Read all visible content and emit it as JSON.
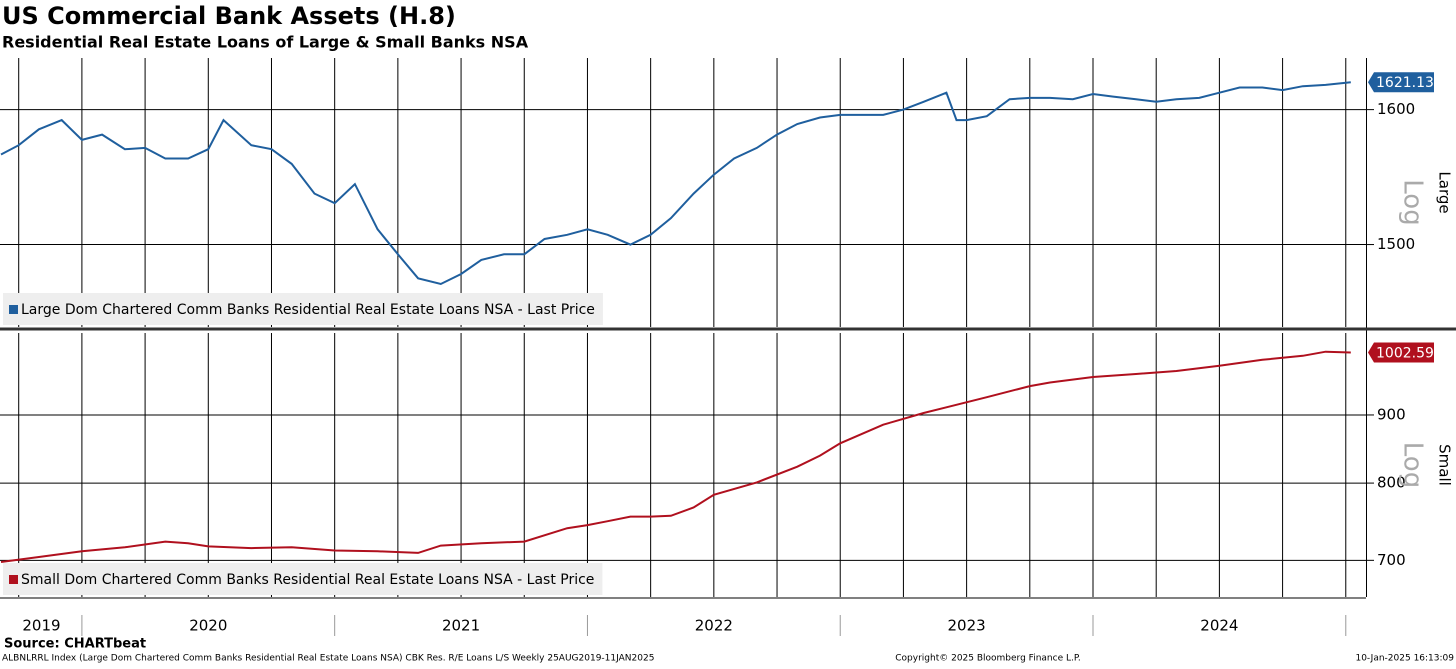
{
  "header": {
    "title": "US Commercial Bank Assets (H.8)",
    "subtitle": "Residential Real Estate Loans of Large & Small Banks NSA"
  },
  "footer": {
    "source": "Source: CHARTbeat",
    "description": "ALBNLRRL Index (Large Dom Chartered Comm Banks Residential Real Estate Loans NSA) CBK Res. R/E Loans L/S  Weekly 25AUG2019-11JAN2025",
    "copyright": "Copyright© 2025 Bloomberg Finance L.P.",
    "timestamp": "10-Jan-2025 16:13:09"
  },
  "chart_data": [
    {
      "type": "line",
      "axis_label": "Large",
      "scale_note": "Log",
      "log_scale": true,
      "grid": true,
      "xlim": [
        2019.676,
        2025.08
      ],
      "xticks": [
        2019.75,
        2020,
        2020.25,
        2020.5,
        2020.75,
        2021,
        2021.25,
        2021.5,
        2021.75,
        2022,
        2022.25,
        2022.5,
        2022.75,
        2023,
        2023.25,
        2023.5,
        2023.75,
        2024,
        2024.25,
        2024.5,
        2024.75,
        2025
      ],
      "ylim": [
        1442,
        1640
      ],
      "yticks": [
        1500,
        1600
      ],
      "x": [
        2019.68,
        2019.75,
        2019.83,
        2019.92,
        2020.0,
        2020.08,
        2020.17,
        2020.25,
        2020.33,
        2020.42,
        2020.5,
        2020.56,
        2020.67,
        2020.75,
        2020.83,
        2020.92,
        2021.0,
        2021.08,
        2021.17,
        2021.25,
        2021.33,
        2021.42,
        2021.5,
        2021.58,
        2021.67,
        2021.75,
        2021.83,
        2021.92,
        2022.0,
        2022.08,
        2022.17,
        2022.25,
        2022.33,
        2022.42,
        2022.5,
        2022.58,
        2022.67,
        2022.75,
        2022.83,
        2022.92,
        2023.0,
        2023.08,
        2023.17,
        2023.25,
        2023.33,
        2023.42,
        2023.46,
        2023.5,
        2023.58,
        2023.67,
        2023.75,
        2023.83,
        2023.92,
        2024.0,
        2024.08,
        2024.17,
        2024.25,
        2024.33,
        2024.42,
        2024.5,
        2024.58,
        2024.67,
        2024.75,
        2024.83,
        2024.92,
        2025.02
      ],
      "series": [
        {
          "name": "Large Dom Chartered Comm Banks Residential Real Estate Loans NSA - Last Price",
          "color": "#1f5f9e",
          "values": [
            1566,
            1573,
            1585,
            1592,
            1577,
            1581,
            1570,
            1571,
            1563,
            1563,
            1570,
            1592,
            1573,
            1570,
            1559,
            1537,
            1530,
            1544,
            1511,
            1493,
            1476,
            1472,
            1479,
            1489,
            1493,
            1493,
            1504,
            1507,
            1511,
            1507,
            1500,
            1507,
            1519,
            1537,
            1551,
            1563,
            1571,
            1581,
            1589,
            1594,
            1596,
            1596,
            1596,
            1600,
            1606,
            1613,
            1592,
            1592,
            1595,
            1608,
            1609,
            1609,
            1608,
            1612,
            1610,
            1608,
            1606,
            1608,
            1609,
            1613,
            1617,
            1617,
            1615,
            1618,
            1619,
            1621.13
          ]
        }
      ]
    },
    {
      "type": "line",
      "axis_label": "Small",
      "scale_note": "Log",
      "log_scale": true,
      "grid": true,
      "xlim": [
        2019.676,
        2025.08
      ],
      "xticks": [
        2019.75,
        2020,
        2020.25,
        2020.5,
        2020.75,
        2021,
        2021.25,
        2021.5,
        2021.75,
        2022,
        2022.25,
        2022.5,
        2022.75,
        2023,
        2023.25,
        2023.5,
        2023.75,
        2024,
        2024.25,
        2024.5,
        2024.75,
        2025
      ],
      "year_labels": [
        {
          "value": 2019.84,
          "label": "2019"
        },
        {
          "value": 2020.5,
          "label": "2020"
        },
        {
          "value": 2021.5,
          "label": "2021"
        },
        {
          "value": 2022.5,
          "label": "2022"
        },
        {
          "value": 2023.5,
          "label": "2023"
        },
        {
          "value": 2024.5,
          "label": "2024"
        }
      ],
      "ylim": [
        657,
        1037
      ],
      "yticks": [
        700,
        800,
        900
      ],
      "x": [
        2019.68,
        2019.83,
        2020.0,
        2020.17,
        2020.33,
        2020.42,
        2020.5,
        2020.67,
        2020.83,
        2021.0,
        2021.17,
        2021.33,
        2021.42,
        2021.58,
        2021.75,
        2021.92,
        2022.0,
        2022.08,
        2022.17,
        2022.25,
        2022.33,
        2022.42,
        2022.5,
        2022.67,
        2022.83,
        2022.92,
        2023.0,
        2023.17,
        2023.33,
        2023.42,
        2023.58,
        2023.75,
        2023.83,
        2024.0,
        2024.17,
        2024.33,
        2024.5,
        2024.67,
        2024.83,
        2024.92,
        2025.02
      ],
      "series": [
        {
          "name": "Small Dom Chartered Comm Banks Residential Real Estate Loans NSA - Last Price",
          "color": "#b0101e",
          "values": [
            698,
            704,
            711,
            716,
            723,
            721,
            717,
            715,
            716,
            712,
            711,
            709,
            718,
            721,
            723,
            740,
            744,
            749,
            755,
            755,
            756,
            767,
            784,
            801,
            823,
            839,
            857,
            885,
            903,
            912,
            928,
            946,
            952,
            961,
            966,
            971,
            980,
            990,
            997,
            1004,
            1002.59
          ]
        }
      ]
    }
  ]
}
